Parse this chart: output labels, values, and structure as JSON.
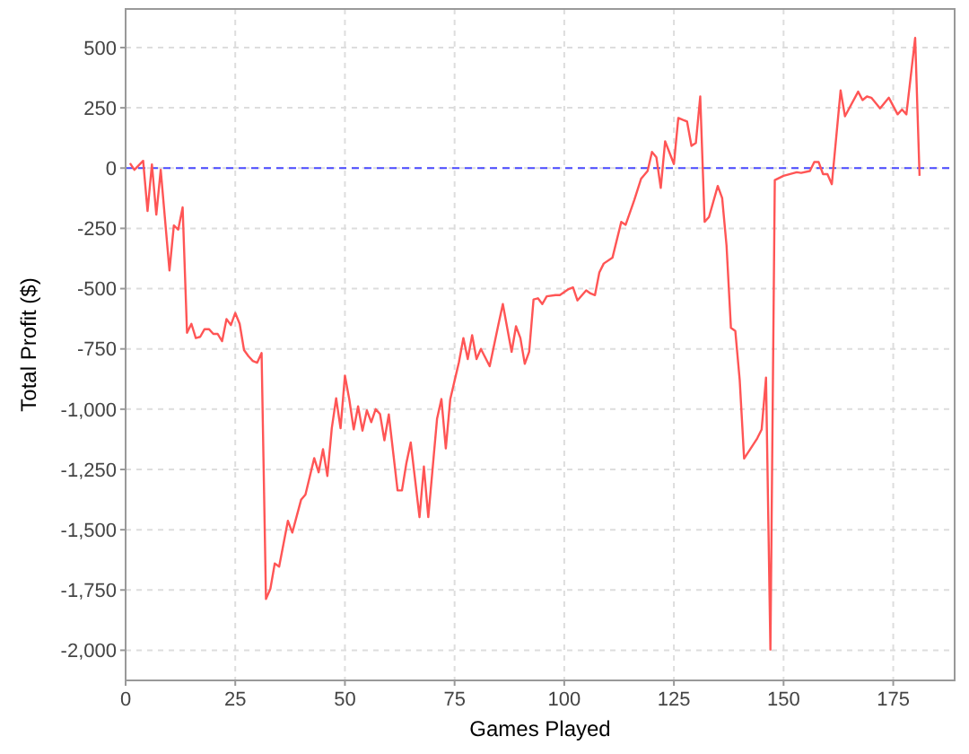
{
  "chart_data": {
    "type": "line",
    "xlabel": "Games Played",
    "ylabel": "Total Profit ($)",
    "grid": true,
    "marker": "none",
    "line_style": "solid",
    "xlim": [
      0,
      189
    ],
    "xticks": [
      0,
      25,
      50,
      75,
      100,
      125,
      150,
      175
    ],
    "ylim": [
      -2125,
      660
    ],
    "yticks": [
      {
        "value": -2000,
        "label": "-2,000"
      },
      {
        "value": -1750,
        "label": "-1,750"
      },
      {
        "value": -1500,
        "label": "-1,500"
      },
      {
        "value": -1250,
        "label": "-1,250"
      },
      {
        "value": -1000,
        "label": "-1,000"
      },
      -750,
      -500,
      -250,
      0,
      250,
      500
    ],
    "ref_lines": [
      {
        "axis": "y",
        "value": 0,
        "color": "#4a4aff",
        "line_style": "dashed"
      }
    ],
    "series": [
      {
        "color": "#ff5555",
        "x": [
          1,
          2,
          4,
          5,
          6,
          7,
          8,
          10,
          11,
          12,
          13,
          14,
          15,
          16,
          17,
          18,
          19,
          20,
          21,
          22,
          23,
          24,
          25,
          26,
          27,
          28,
          29,
          30,
          31,
          32,
          33,
          34,
          35,
          37,
          38,
          40,
          41,
          43,
          44,
          45,
          46,
          47,
          48,
          49,
          50,
          51,
          52,
          53,
          54,
          55,
          56,
          57,
          58,
          59,
          60,
          62,
          63,
          64,
          65,
          67,
          68,
          69,
          71,
          72,
          73,
          74,
          76,
          77,
          78,
          79,
          80,
          81,
          83,
          85,
          86,
          88,
          89,
          90,
          91,
          92,
          93,
          94,
          95,
          96,
          98,
          99,
          101,
          102,
          103,
          105,
          106,
          107,
          108,
          109,
          111,
          113,
          114,
          116,
          117.5,
          119,
          120,
          121,
          122,
          123,
          125,
          126,
          128,
          129,
          130,
          131,
          132,
          133,
          135,
          136,
          137,
          138,
          139,
          140,
          141,
          142.5,
          144,
          145,
          146,
          147,
          148,
          150,
          153,
          154,
          156,
          157,
          158,
          159,
          160,
          161,
          163,
          164,
          167,
          168,
          169,
          170,
          172,
          174,
          176,
          177,
          178,
          180,
          181
        ],
        "values": [
          20,
          -7,
          30,
          -178,
          15,
          -193,
          -7,
          -425,
          -238,
          -255,
          -163,
          -683,
          -646,
          -705,
          -700,
          -668,
          -668,
          -688,
          -688,
          -718,
          -626,
          -651,
          -601,
          -646,
          -755,
          -780,
          -800,
          -807,
          -767,
          -1787,
          -1745,
          -1640,
          -1653,
          -1463,
          -1512,
          -1376,
          -1354,
          -1203,
          -1262,
          -1166,
          -1277,
          -1079,
          -955,
          -1079,
          -861,
          -960,
          -1084,
          -988,
          -1089,
          -1005,
          -1054,
          -1000,
          -1020,
          -1129,
          -1022,
          -1337,
          -1337,
          -1225,
          -1138,
          -1448,
          -1238,
          -1448,
          -1040,
          -958,
          -1163,
          -960,
          -804,
          -705,
          -792,
          -693,
          -792,
          -750,
          -822,
          -648,
          -564,
          -762,
          -656,
          -705,
          -812,
          -762,
          -545,
          -540,
          -564,
          -532,
          -527,
          -527,
          -502,
          -495,
          -549,
          -507,
          -520,
          -527,
          -433,
          -396,
          -371,
          -223,
          -235,
          -131,
          -45,
          -12,
          67,
          45,
          -82,
          111,
          17,
          208,
          193,
          92,
          104,
          297,
          -223,
          -203,
          -74,
          -124,
          -322,
          -663,
          -676,
          -879,
          -1205,
          -1163,
          -1121,
          -1084,
          -869,
          -1997,
          -50,
          -32,
          -17,
          -20,
          -12,
          25,
          25,
          -25,
          -25,
          -67,
          322,
          215,
          317,
          282,
          297,
          292,
          248,
          292,
          223,
          243,
          223,
          540,
          -32
        ]
      }
    ]
  }
}
